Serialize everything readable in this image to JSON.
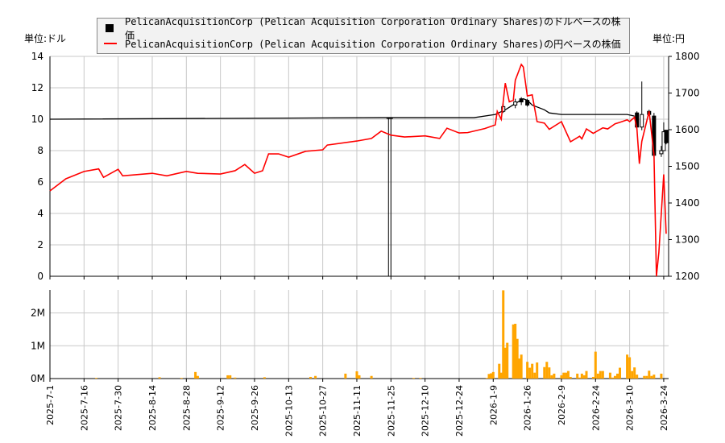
{
  "chart_data": [
    {
      "type": "line",
      "panel": "price",
      "legend": [
        "PelicanAcquisitionCorp (Pelican Acquisition Corporation Ordinary Shares)のドルベースの株価",
        "PelicanAcquisitionCorp (Pelican Acquisition Corporation Ordinary Shares)の円ベースの株価"
      ],
      "legend_placement": "top",
      "left_unit": "単位:ドル",
      "right_unit": "単位:円",
      "ylim_left": [
        0,
        14
      ],
      "ylim_right": [
        1200,
        1800
      ],
      "yticks_left": [
        "0",
        "2",
        "4",
        "6",
        "8",
        "10",
        "12",
        "14"
      ],
      "yticks_right": [
        "1200",
        "1300",
        "1400",
        "1500",
        "1600",
        "1700",
        "1800"
      ],
      "grid": true,
      "colors": {
        "usd": "#000000",
        "jpy": "#ff0000"
      },
      "usd_series": [
        [
          "2025-07-01",
          10.0
        ],
        [
          "2025-11-21",
          10.1
        ],
        [
          "2025-12-31",
          10.1
        ],
        [
          "2026-01-10",
          10.3
        ],
        [
          "2026-01-15",
          10.6
        ],
        [
          "2026-01-20",
          11.0
        ],
        [
          "2026-01-24",
          11.3
        ],
        [
          "2026-01-26",
          11.2
        ],
        [
          "2026-01-28",
          10.9
        ],
        [
          "2026-02-02",
          10.6
        ],
        [
          "2026-02-04",
          10.4
        ],
        [
          "2026-02-09",
          10.3
        ],
        [
          "2026-03-09",
          10.3
        ],
        [
          "2026-03-12",
          10.2
        ]
      ],
      "usd_candles": [
        {
          "date": "2025-11-24",
          "o": 10.1,
          "h": 10.1,
          "l": 0,
          "c": 10.1
        },
        {
          "date": "2025-11-25",
          "o": 10.1,
          "h": 10.1,
          "l": 0,
          "c": 10.1
        },
        {
          "date": "2026-01-14",
          "o": 10.5,
          "h": 11.0,
          "l": 10.4,
          "c": 10.8
        },
        {
          "date": "2026-01-20",
          "o": 10.9,
          "h": 11.3,
          "l": 10.7,
          "c": 11.1
        },
        {
          "date": "2026-01-23",
          "o": 11.3,
          "h": 11.4,
          "l": 10.9,
          "c": 11.1
        },
        {
          "date": "2026-01-26",
          "o": 11.2,
          "h": 11.3,
          "l": 10.8,
          "c": 10.9
        },
        {
          "date": "2026-03-13",
          "o": 10.4,
          "h": 10.5,
          "l": 9.4,
          "c": 9.5
        },
        {
          "date": "2026-03-15",
          "o": 9.5,
          "h": 12.4,
          "l": 9.3,
          "c": 10.3
        },
        {
          "date": "2026-03-18",
          "o": 10.5,
          "h": 10.6,
          "l": 10.2,
          "c": 10.3
        },
        {
          "date": "2026-03-20",
          "o": 10.2,
          "h": 10.4,
          "l": 7.6,
          "c": 7.7
        },
        {
          "date": "2026-03-23",
          "o": 7.8,
          "h": 8.3,
          "l": 7.6,
          "c": 8.0
        },
        {
          "date": "2026-03-24",
          "o": 8.0,
          "h": 9.8,
          "l": 8.0,
          "c": 9.2
        },
        {
          "date": "2026-03-25",
          "o": 9.3,
          "h": 9.3,
          "l": 8.4,
          "c": 8.5
        }
      ],
      "jpy_series": [
        [
          "2025-07-01",
          1433
        ],
        [
          "2025-07-08",
          1466
        ],
        [
          "2025-07-16",
          1486
        ],
        [
          "2025-07-22",
          1493
        ],
        [
          "2025-07-24",
          1470
        ],
        [
          "2025-07-30",
          1492
        ],
        [
          "2025-08-01",
          1474
        ],
        [
          "2025-08-14",
          1481
        ],
        [
          "2025-08-20",
          1474
        ],
        [
          "2025-08-28",
          1486
        ],
        [
          "2025-09-02",
          1481
        ],
        [
          "2025-09-12",
          1479
        ],
        [
          "2025-09-18",
          1488
        ],
        [
          "2025-09-22",
          1505
        ],
        [
          "2025-09-26",
          1481
        ],
        [
          "2025-09-30",
          1488
        ],
        [
          "2025-10-03",
          1534
        ],
        [
          "2025-10-08",
          1534
        ],
        [
          "2025-10-13",
          1525
        ],
        [
          "2025-10-20",
          1541
        ],
        [
          "2025-10-27",
          1545
        ],
        [
          "2025-10-29",
          1558
        ],
        [
          "2025-11-11",
          1569
        ],
        [
          "2025-11-17",
          1576
        ],
        [
          "2025-11-21",
          1596
        ],
        [
          "2025-11-25",
          1585
        ],
        [
          "2025-12-01",
          1580
        ],
        [
          "2025-12-10",
          1583
        ],
        [
          "2025-12-16",
          1576
        ],
        [
          "2025-12-19",
          1604
        ],
        [
          "2025-12-24",
          1591
        ],
        [
          "2025-12-28",
          1592
        ],
        [
          "2026-01-05",
          1603
        ],
        [
          "2026-01-10",
          1613
        ],
        [
          "2026-01-11",
          1650
        ],
        [
          "2026-01-13",
          1628
        ],
        [
          "2026-01-15",
          1727
        ],
        [
          "2026-01-17",
          1676
        ],
        [
          "2026-01-19",
          1680
        ],
        [
          "2026-01-20",
          1735
        ],
        [
          "2026-01-23",
          1778
        ],
        [
          "2026-01-24",
          1771
        ],
        [
          "2026-01-26",
          1692
        ],
        [
          "2026-01-28",
          1695
        ],
        [
          "2026-01-30",
          1622
        ],
        [
          "2026-02-02",
          1618
        ],
        [
          "2026-02-04",
          1601
        ],
        [
          "2026-02-09",
          1622
        ],
        [
          "2026-02-13",
          1567
        ],
        [
          "2026-02-17",
          1582
        ],
        [
          "2026-02-18",
          1575
        ],
        [
          "2026-02-20",
          1602
        ],
        [
          "2026-02-23",
          1590
        ],
        [
          "2026-02-27",
          1605
        ],
        [
          "2026-03-01",
          1602
        ],
        [
          "2026-03-04",
          1616
        ],
        [
          "2026-03-06",
          1620
        ],
        [
          "2026-03-09",
          1627
        ],
        [
          "2026-03-10",
          1622
        ],
        [
          "2026-03-12",
          1634
        ],
        [
          "2026-03-13",
          1602
        ],
        [
          "2026-03-14",
          1507
        ],
        [
          "2026-03-15",
          1568
        ],
        [
          "2026-03-18",
          1650
        ],
        [
          "2026-03-20",
          1532
        ],
        [
          "2026-03-21",
          1200
        ],
        [
          "2026-03-22",
          1265
        ],
        [
          "2026-03-24",
          1478
        ],
        [
          "2026-03-25",
          1316
        ]
      ]
    },
    {
      "type": "bar",
      "panel": "volume",
      "ylim": [
        0,
        2700000
      ],
      "yticks": [
        "0M",
        "1M",
        "2M"
      ],
      "color": "#ffa500",
      "grid": true,
      "values": [
        [
          "2025-07-21",
          20000
        ],
        [
          "2025-08-17",
          40000
        ],
        [
          "2025-08-26",
          20000
        ],
        [
          "2025-09-01",
          200000
        ],
        [
          "2025-09-02",
          80000
        ],
        [
          "2025-09-15",
          100000
        ],
        [
          "2025-09-16",
          100000
        ],
        [
          "2025-09-18",
          30000
        ],
        [
          "2025-10-01",
          40000
        ],
        [
          "2025-10-22",
          50000
        ],
        [
          "2025-10-24",
          80000
        ],
        [
          "2025-11-06",
          150000
        ],
        [
          "2025-11-11",
          220000
        ],
        [
          "2025-11-12",
          100000
        ],
        [
          "2025-11-17",
          80000
        ],
        [
          "2025-12-05",
          20000
        ],
        [
          "2025-12-08",
          20000
        ],
        [
          "2026-01-06",
          20000
        ],
        [
          "2026-01-07",
          140000
        ],
        [
          "2026-01-08",
          160000
        ],
        [
          "2026-01-09",
          200000
        ],
        [
          "2026-01-12",
          450000
        ],
        [
          "2026-01-13",
          180000
        ],
        [
          "2026-01-14",
          2690000
        ],
        [
          "2026-01-15",
          940000
        ],
        [
          "2026-01-16",
          1090000
        ],
        [
          "2026-01-19",
          1650000
        ],
        [
          "2026-01-20",
          1670000
        ],
        [
          "2026-01-21",
          1210000
        ],
        [
          "2026-01-22",
          610000
        ],
        [
          "2026-01-23",
          730000
        ],
        [
          "2026-01-26",
          510000
        ],
        [
          "2026-01-27",
          330000
        ],
        [
          "2026-01-28",
          450000
        ],
        [
          "2026-01-29",
          180000
        ],
        [
          "2026-01-30",
          490000
        ],
        [
          "2026-02-02",
          350000
        ],
        [
          "2026-02-03",
          510000
        ],
        [
          "2026-02-04",
          340000
        ],
        [
          "2026-02-05",
          100000
        ],
        [
          "2026-02-06",
          150000
        ],
        [
          "2026-02-09",
          100000
        ],
        [
          "2026-02-10",
          180000
        ],
        [
          "2026-02-11",
          180000
        ],
        [
          "2026-02-12",
          230000
        ],
        [
          "2026-02-13",
          50000
        ],
        [
          "2026-02-16",
          150000
        ],
        [
          "2026-02-17",
          30000
        ],
        [
          "2026-02-18",
          150000
        ],
        [
          "2026-02-19",
          100000
        ],
        [
          "2026-02-20",
          230000
        ],
        [
          "2026-02-23",
          50000
        ],
        [
          "2026-02-24",
          820000
        ],
        [
          "2026-02-25",
          150000
        ],
        [
          "2026-02-26",
          230000
        ],
        [
          "2026-02-27",
          230000
        ],
        [
          "2026-03-02",
          180000
        ],
        [
          "2026-03-03",
          30000
        ],
        [
          "2026-03-04",
          80000
        ],
        [
          "2026-03-05",
          150000
        ],
        [
          "2026-03-06",
          330000
        ],
        [
          "2026-03-09",
          730000
        ],
        [
          "2026-03-10",
          650000
        ],
        [
          "2026-03-11",
          230000
        ],
        [
          "2026-03-12",
          340000
        ],
        [
          "2026-03-13",
          120000
        ],
        [
          "2026-03-16",
          80000
        ],
        [
          "2026-03-17",
          80000
        ],
        [
          "2026-03-18",
          240000
        ],
        [
          "2026-03-19",
          80000
        ],
        [
          "2026-03-20",
          120000
        ],
        [
          "2026-03-23",
          150000
        ]
      ]
    }
  ],
  "xticks": [
    "2025-7-1",
    "2025-7-16",
    "2025-7-30",
    "2025-8-14",
    "2025-8-28",
    "2025-9-12",
    "2025-9-26",
    "2025-10-13",
    "2025-10-27",
    "2025-11-11",
    "2025-11-25",
    "2025-12-10",
    "2025-12-24",
    "2026-1-9",
    "2026-1-26",
    "2026-2-9",
    "2026-2-24",
    "2026-3-10",
    "2026-3-24"
  ]
}
